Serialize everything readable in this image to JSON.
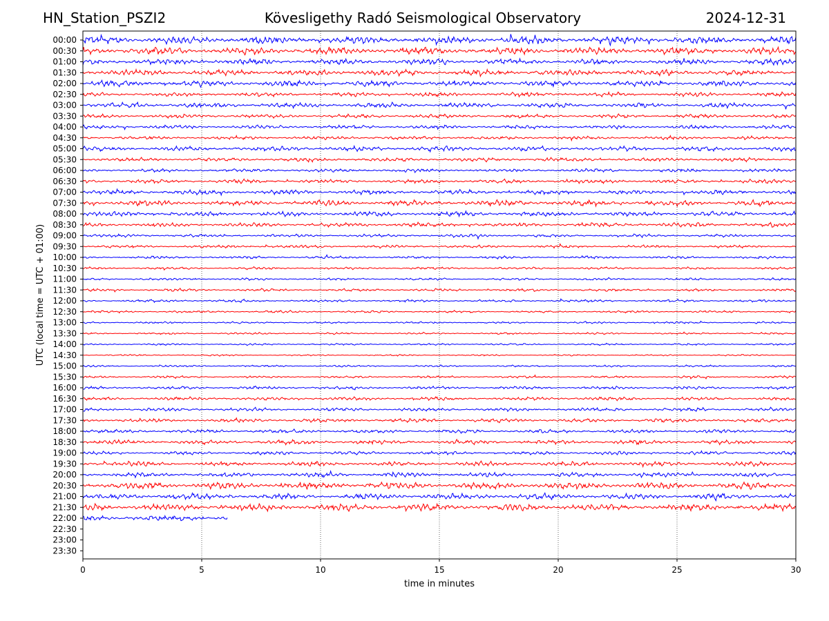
{
  "header": {
    "left": "HN_Station_PSZI2",
    "center": "Kövesligethy Radó Seismological Observatory",
    "right": "2024-12-31"
  },
  "chart_data": {
    "type": "line",
    "title": "Kövesligethy Radó Seismological Observatory",
    "xlabel": "time in minutes",
    "ylabel": "UTC (local time = UTC + 01:00)",
    "xlim": [
      0,
      30
    ],
    "x_ticks": [
      0,
      5,
      10,
      15,
      20,
      25,
      30
    ],
    "vertical_gridlines": [
      5,
      10,
      15,
      20,
      25
    ],
    "row_labels": [
      "00:00",
      "00:30",
      "01:00",
      "01:30",
      "02:00",
      "02:30",
      "03:00",
      "03:30",
      "04:00",
      "04:30",
      "05:00",
      "05:30",
      "06:00",
      "06:30",
      "07:00",
      "07:30",
      "08:00",
      "08:30",
      "09:00",
      "09:30",
      "10:00",
      "10:30",
      "11:00",
      "11:30",
      "12:00",
      "12:30",
      "13:00",
      "13:30",
      "14:00",
      "14:30",
      "15:00",
      "15:30",
      "16:00",
      "16:30",
      "17:00",
      "17:30",
      "18:00",
      "18:30",
      "19:00",
      "19:30",
      "20:00",
      "20:30",
      "21:00",
      "21:30",
      "22:00",
      "22:30",
      "23:00",
      "23:30"
    ],
    "trace_colors": [
      "#0000ff",
      "#ff0000"
    ],
    "recorded_rows": 45,
    "last_row_end_minute": 6.1,
    "relative_amplitude": [
      1.0,
      0.95,
      0.75,
      0.8,
      0.8,
      0.55,
      0.65,
      0.5,
      0.5,
      0.45,
      0.6,
      0.5,
      0.45,
      0.5,
      0.6,
      0.75,
      0.65,
      0.55,
      0.4,
      0.4,
      0.35,
      0.3,
      0.3,
      0.35,
      0.35,
      0.3,
      0.25,
      0.25,
      0.25,
      0.2,
      0.25,
      0.3,
      0.4,
      0.45,
      0.45,
      0.5,
      0.5,
      0.6,
      0.45,
      0.6,
      0.6,
      0.9,
      0.75,
      0.9,
      0.8
    ]
  }
}
